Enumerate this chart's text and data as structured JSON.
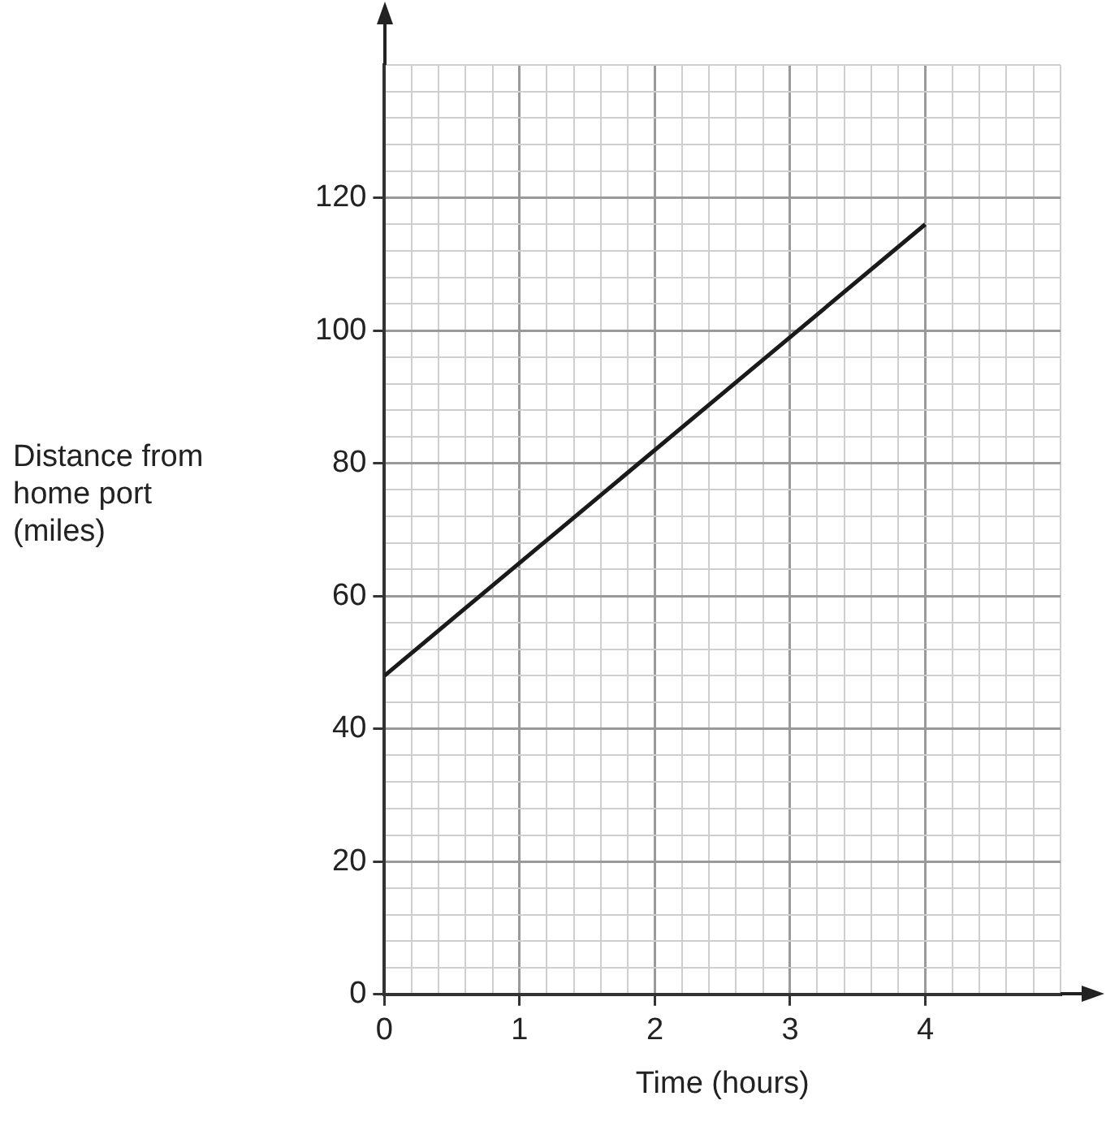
{
  "chart_data": {
    "type": "line",
    "xlabel": "Time (hours)",
    "ylabel": "Distance from home port (miles)",
    "x": [
      0,
      4
    ],
    "series": [
      {
        "color": "#1a1a1a",
        "values": [
          48,
          116
        ]
      }
    ],
    "xlim": [
      0,
      5
    ],
    "ylim": [
      0,
      140
    ],
    "xticks": [
      0,
      {
        "value": 0.2,
        "label": null
      },
      {
        "value": 0.4,
        "label": null
      },
      {
        "value": 0.6,
        "label": null
      },
      {
        "value": 0.8,
        "label": null
      },
      1,
      {
        "value": 1.2,
        "label": null
      },
      {
        "value": 1.4,
        "label": null
      },
      {
        "value": 1.6,
        "label": null
      },
      {
        "value": 1.8,
        "label": null
      },
      2,
      {
        "value": 2.2,
        "label": null
      },
      {
        "value": 2.4,
        "label": null
      },
      {
        "value": 2.6,
        "label": null
      },
      {
        "value": 2.8,
        "label": null
      },
      3,
      {
        "value": 3.2,
        "label": null
      },
      {
        "value": 3.4,
        "label": null
      },
      {
        "value": 3.6,
        "label": null
      },
      {
        "value": 3.8,
        "label": null
      },
      4,
      {
        "value": 4.2,
        "label": null
      },
      {
        "value": 4.4,
        "label": null
      },
      {
        "value": 4.6,
        "label": null
      },
      {
        "value": 4.8,
        "label": null
      },
      {
        "value": 5,
        "label": null
      }
    ],
    "yticks": [
      0,
      {
        "value": 4,
        "label": null
      },
      {
        "value": 8,
        "label": null
      },
      {
        "value": 12,
        "label": null
      },
      {
        "value": 16,
        "label": null
      },
      20,
      {
        "value": 24,
        "label": null
      },
      {
        "value": 28,
        "label": null
      },
      {
        "value": 32,
        "label": null
      },
      {
        "value": 36,
        "label": null
      },
      40,
      {
        "value": 44,
        "label": null
      },
      {
        "value": 48,
        "label": null
      },
      {
        "value": 52,
        "label": null
      },
      {
        "value": 56,
        "label": null
      },
      60,
      {
        "value": 64,
        "label": null
      },
      {
        "value": 68,
        "label": null
      },
      {
        "value": 72,
        "label": null
      },
      {
        "value": 76,
        "label": null
      },
      80,
      {
        "value": 84,
        "label": null
      },
      {
        "value": 88,
        "label": null
      },
      {
        "value": 92,
        "label": null
      },
      {
        "value": 96,
        "label": null
      },
      100,
      {
        "value": 104,
        "label": null
      },
      {
        "value": 108,
        "label": null
      },
      {
        "value": 112,
        "label": null
      },
      {
        "value": 116,
        "label": null
      },
      120,
      {
        "value": 124,
        "label": null
      },
      {
        "value": 128,
        "label": null
      },
      {
        "value": 132,
        "label": null
      },
      {
        "value": 136,
        "label": null
      },
      {
        "value": 140,
        "label": null
      }
    ],
    "grid": true,
    "legend": false,
    "marker": "none",
    "line_style": "solid"
  }
}
